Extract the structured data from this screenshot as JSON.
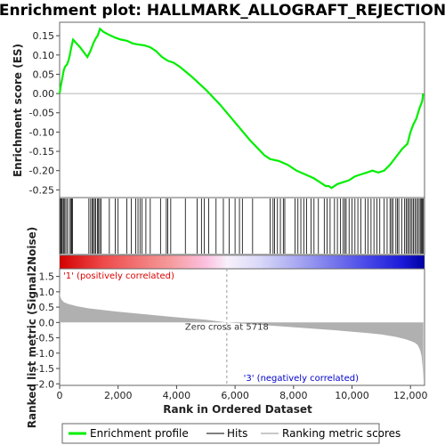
{
  "colors": {
    "es_line": "#00ee00",
    "hit": "#000000",
    "metric_fill": "#b0b0b0",
    "pos_label": "#dd0000",
    "neg_label": "#0000cc",
    "zero_line": "#999999",
    "frame": "#666666"
  },
  "chart_data": {
    "type": "line",
    "title": "Enrichment plot: HALLMARK_ALLOGRAFT_REJECTION",
    "xlabel": "Rank in Ordered Dataset",
    "x_ticks": [
      0,
      2000,
      4000,
      6000,
      8000,
      10000,
      12000
    ],
    "x_tick_labels": [
      "0",
      "2,000",
      "4,000",
      "6,000",
      "8,000",
      "10,000",
      "12,000"
    ],
    "xlim": [
      0,
      12480
    ],
    "es_panel": {
      "ylabel": "Enrichment score (ES)",
      "ylim": [
        -0.27,
        0.185
      ],
      "y_ticks": [
        0.15,
        0.1,
        0.05,
        0.0,
        -0.05,
        -0.1,
        -0.15,
        -0.2,
        -0.25
      ],
      "y_tick_labels": [
        "0.15",
        "0.10",
        "0.05",
        "0.00",
        "-0.05",
        "-0.10",
        "-0.15",
        "-0.20",
        "-0.25"
      ],
      "series": [
        {
          "name": "Enrichment profile",
          "x": [
            0,
            40,
            90,
            140,
            190,
            250,
            300,
            350,
            400,
            460,
            700,
            950,
            1050,
            1150,
            1250,
            1300,
            1380,
            1500,
            1700,
            1900,
            2100,
            2300,
            2500,
            2700,
            2900,
            3100,
            3300,
            3500,
            3700,
            3900,
            4100,
            4500,
            5000,
            5500,
            6000,
            6500,
            7000,
            7200,
            7500,
            7800,
            8100,
            8400,
            8700,
            8900,
            9100,
            9200,
            9300,
            9500,
            9700,
            9900,
            10100,
            10300,
            10500,
            10700,
            10900,
            11100,
            11300,
            11500,
            11700,
            11900,
            12000,
            12100,
            12200,
            12300,
            12350,
            12400,
            12430
          ],
          "y": [
            0.0,
            0.02,
            0.04,
            0.06,
            0.07,
            0.075,
            0.085,
            0.1,
            0.12,
            0.14,
            0.12,
            0.095,
            0.11,
            0.13,
            0.145,
            0.15,
            0.168,
            0.16,
            0.152,
            0.145,
            0.14,
            0.137,
            0.13,
            0.127,
            0.125,
            0.12,
            0.11,
            0.095,
            0.085,
            0.08,
            0.07,
            0.045,
            0.01,
            -0.03,
            -0.075,
            -0.12,
            -0.16,
            -0.17,
            -0.175,
            -0.185,
            -0.2,
            -0.21,
            -0.22,
            -0.23,
            -0.24,
            -0.24,
            -0.245,
            -0.235,
            -0.23,
            -0.225,
            -0.215,
            -0.21,
            -0.205,
            -0.2,
            -0.205,
            -0.2,
            -0.185,
            -0.165,
            -0.145,
            -0.13,
            -0.1,
            -0.08,
            -0.065,
            -0.04,
            -0.03,
            -0.02,
            0.0
          ]
        }
      ]
    },
    "hits_panel": {
      "hit_positions": [
        30,
        60,
        90,
        130,
        160,
        210,
        260,
        330,
        380,
        410,
        440,
        1000,
        1060,
        1110,
        1150,
        1190,
        1230,
        1290,
        1330,
        1370,
        1420,
        1700,
        1900,
        2000,
        2300,
        2450,
        2600,
        2680,
        2750,
        2820,
        2950,
        3100,
        3450,
        3650,
        3700,
        3800,
        4300,
        4700,
        4850,
        4950,
        5100,
        5350,
        5600,
        5800,
        6000,
        6150,
        6250,
        6600,
        7200,
        7300,
        7350,
        7450,
        7550,
        7650,
        7700,
        8050,
        8150,
        8250,
        8350,
        8450,
        8600,
        8700,
        8850,
        9050,
        9150,
        9250,
        9400,
        9500,
        9600,
        9700,
        9750,
        9800,
        9900,
        10000,
        10100,
        10200,
        10300,
        10450,
        10550,
        10650,
        10750,
        10850,
        10950,
        11100,
        11200,
        11300,
        11350,
        11400,
        11500,
        11550,
        11600,
        11700,
        11800,
        11850,
        11900,
        11950,
        12000,
        12050,
        12100,
        12150,
        12200,
        12250,
        12300,
        12350,
        12380,
        12410,
        12440
      ]
    },
    "metric_panel": {
      "ylabel": "Ranked list metric (Signal2Noise)",
      "ylim": [
        -2.05,
        1.75
      ],
      "y_ticks": [
        1.5,
        1.0,
        0.5,
        0.0,
        -0.5,
        -1.0,
        -1.5,
        -2.0
      ],
      "y_tick_labels": [
        "1.5",
        "1.0",
        "0.5",
        "0.0",
        "-0.5",
        "-1.0",
        "-1.5",
        "-2.0"
      ],
      "x": [
        0,
        20,
        60,
        150,
        300,
        600,
        1000,
        2000,
        3000,
        4000,
        5000,
        5718,
        6500,
        7500,
        8500,
        9500,
        10500,
        11000,
        11500,
        11800,
        12000,
        12150,
        12250,
        12330,
        12380,
        12420,
        12440
      ],
      "y": [
        1.0,
        0.85,
        0.75,
        0.66,
        0.6,
        0.53,
        0.46,
        0.35,
        0.26,
        0.17,
        0.09,
        0.0,
        -0.05,
        -0.12,
        -0.19,
        -0.26,
        -0.34,
        -0.39,
        -0.47,
        -0.54,
        -0.6,
        -0.66,
        -0.74,
        -0.9,
        -1.1,
        -1.5,
        -1.9
      ],
      "zero_cross_label": "Zero cross at 5718",
      "zero_cross_x": 5718,
      "pos_label": "'1' (positively correlated)",
      "neg_label": "'3' (negatively correlated)"
    },
    "legend": {
      "position": "bottom",
      "items": [
        {
          "label": "Enrichment profile",
          "kind": "es"
        },
        {
          "label": "Hits",
          "kind": "hit"
        },
        {
          "label": "Ranking metric scores",
          "kind": "metric"
        }
      ]
    }
  }
}
